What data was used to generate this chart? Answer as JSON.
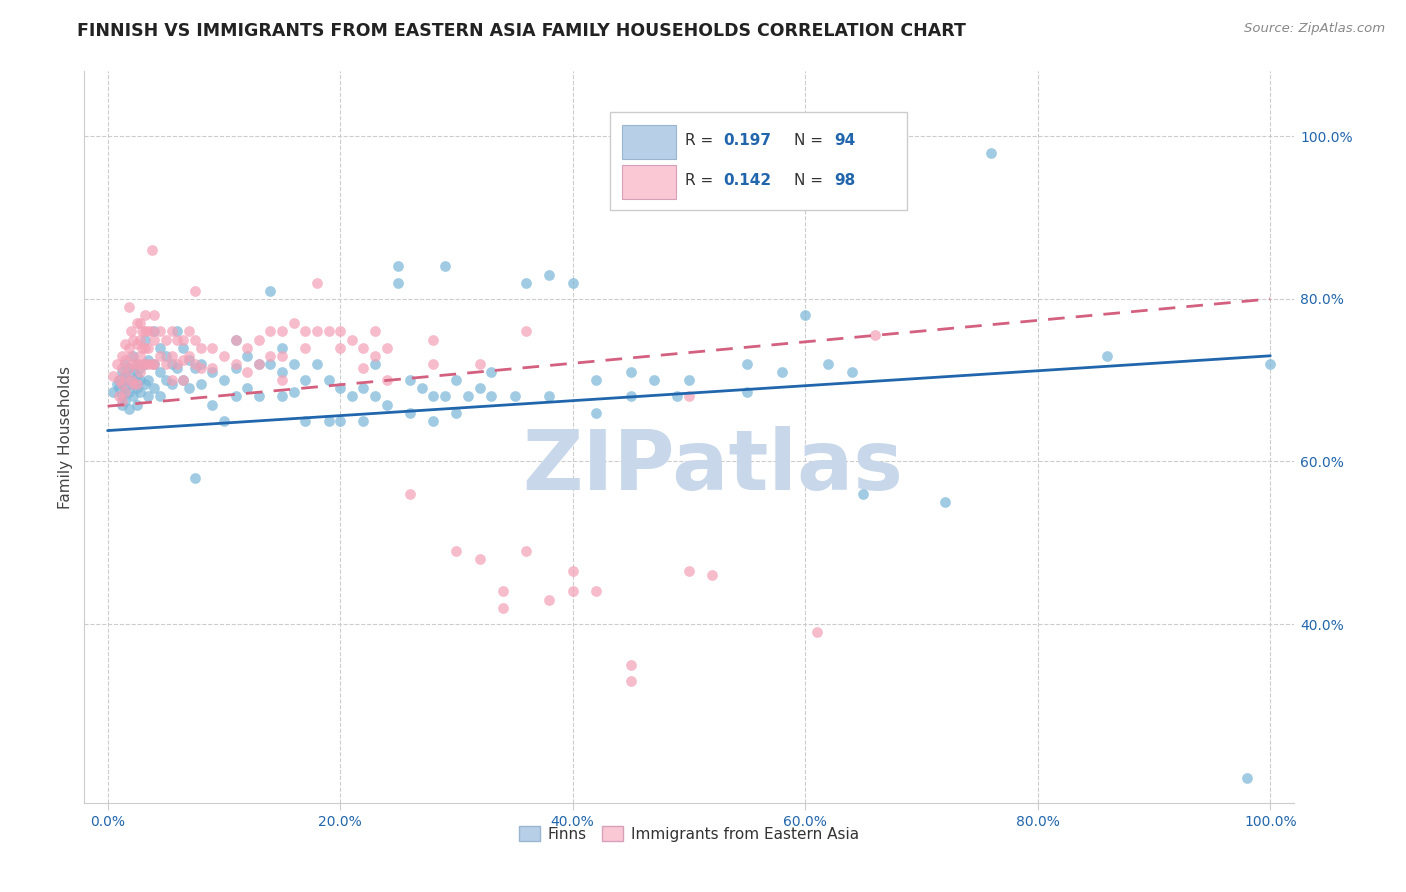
{
  "title": "FINNISH VS IMMIGRANTS FROM EASTERN ASIA FAMILY HOUSEHOLDS CORRELATION CHART",
  "source": "Source: ZipAtlas.com",
  "ylabel": "Family Households",
  "watermark": "ZIPatlas",
  "xticks": [
    0.0,
    0.2,
    0.4,
    0.6,
    0.8,
    1.0
  ],
  "xticklabels": [
    "0.0%",
    "20.0%",
    "40.0%",
    "60.0%",
    "80.0%",
    "100.0%"
  ],
  "yticks_right": [
    0.4,
    0.6,
    0.8,
    1.0
  ],
  "yticklabels_right": [
    "40.0%",
    "60.0%",
    "80.0%",
    "100.0%"
  ],
  "xlim": [
    -0.02,
    1.02
  ],
  "ylim": [
    0.18,
    1.08
  ],
  "blue_scatter": [
    [
      0.005,
      0.685
    ],
    [
      0.008,
      0.695
    ],
    [
      0.01,
      0.7
    ],
    [
      0.01,
      0.69
    ],
    [
      0.012,
      0.71
    ],
    [
      0.012,
      0.695
    ],
    [
      0.012,
      0.68
    ],
    [
      0.012,
      0.67
    ],
    [
      0.015,
      0.72
    ],
    [
      0.015,
      0.705
    ],
    [
      0.015,
      0.69
    ],
    [
      0.015,
      0.675
    ],
    [
      0.018,
      0.715
    ],
    [
      0.018,
      0.7
    ],
    [
      0.018,
      0.685
    ],
    [
      0.018,
      0.665
    ],
    [
      0.022,
      0.73
    ],
    [
      0.022,
      0.71
    ],
    [
      0.022,
      0.695
    ],
    [
      0.022,
      0.68
    ],
    [
      0.025,
      0.72
    ],
    [
      0.025,
      0.705
    ],
    [
      0.025,
      0.69
    ],
    [
      0.025,
      0.67
    ],
    [
      0.028,
      0.715
    ],
    [
      0.028,
      0.7
    ],
    [
      0.028,
      0.685
    ],
    [
      0.032,
      0.75
    ],
    [
      0.032,
      0.72
    ],
    [
      0.032,
      0.695
    ],
    [
      0.035,
      0.725
    ],
    [
      0.035,
      0.7
    ],
    [
      0.035,
      0.68
    ],
    [
      0.04,
      0.76
    ],
    [
      0.04,
      0.72
    ],
    [
      0.04,
      0.69
    ],
    [
      0.045,
      0.74
    ],
    [
      0.045,
      0.71
    ],
    [
      0.045,
      0.68
    ],
    [
      0.05,
      0.73
    ],
    [
      0.05,
      0.7
    ],
    [
      0.055,
      0.72
    ],
    [
      0.055,
      0.695
    ],
    [
      0.06,
      0.76
    ],
    [
      0.06,
      0.715
    ],
    [
      0.065,
      0.74
    ],
    [
      0.065,
      0.7
    ],
    [
      0.07,
      0.725
    ],
    [
      0.07,
      0.69
    ],
    [
      0.075,
      0.715
    ],
    [
      0.075,
      0.58
    ],
    [
      0.08,
      0.72
    ],
    [
      0.08,
      0.695
    ],
    [
      0.09,
      0.71
    ],
    [
      0.09,
      0.67
    ],
    [
      0.1,
      0.7
    ],
    [
      0.1,
      0.65
    ],
    [
      0.11,
      0.75
    ],
    [
      0.11,
      0.715
    ],
    [
      0.11,
      0.68
    ],
    [
      0.12,
      0.73
    ],
    [
      0.12,
      0.69
    ],
    [
      0.13,
      0.72
    ],
    [
      0.13,
      0.68
    ],
    [
      0.14,
      0.81
    ],
    [
      0.14,
      0.72
    ],
    [
      0.15,
      0.74
    ],
    [
      0.15,
      0.71
    ],
    [
      0.15,
      0.68
    ],
    [
      0.16,
      0.72
    ],
    [
      0.16,
      0.685
    ],
    [
      0.17,
      0.7
    ],
    [
      0.17,
      0.65
    ],
    [
      0.18,
      0.72
    ],
    [
      0.19,
      0.7
    ],
    [
      0.19,
      0.65
    ],
    [
      0.2,
      0.69
    ],
    [
      0.2,
      0.65
    ],
    [
      0.21,
      0.68
    ],
    [
      0.22,
      0.69
    ],
    [
      0.22,
      0.65
    ],
    [
      0.23,
      0.72
    ],
    [
      0.23,
      0.68
    ],
    [
      0.24,
      0.67
    ],
    [
      0.25,
      0.84
    ],
    [
      0.25,
      0.82
    ],
    [
      0.26,
      0.7
    ],
    [
      0.26,
      0.66
    ],
    [
      0.27,
      0.69
    ],
    [
      0.28,
      0.68
    ],
    [
      0.28,
      0.65
    ],
    [
      0.29,
      0.84
    ],
    [
      0.29,
      0.68
    ],
    [
      0.3,
      0.7
    ],
    [
      0.3,
      0.66
    ],
    [
      0.31,
      0.68
    ],
    [
      0.32,
      0.69
    ],
    [
      0.33,
      0.71
    ],
    [
      0.33,
      0.68
    ],
    [
      0.35,
      0.68
    ],
    [
      0.36,
      0.82
    ],
    [
      0.38,
      0.83
    ],
    [
      0.38,
      0.68
    ],
    [
      0.4,
      0.82
    ],
    [
      0.42,
      0.7
    ],
    [
      0.42,
      0.66
    ],
    [
      0.45,
      0.71
    ],
    [
      0.45,
      0.68
    ],
    [
      0.47,
      0.7
    ],
    [
      0.49,
      0.68
    ],
    [
      0.5,
      0.7
    ],
    [
      0.55,
      0.72
    ],
    [
      0.55,
      0.685
    ],
    [
      0.58,
      0.71
    ],
    [
      0.6,
      0.78
    ],
    [
      0.62,
      0.72
    ],
    [
      0.64,
      0.71
    ],
    [
      0.65,
      0.56
    ],
    [
      0.72,
      0.55
    ],
    [
      0.76,
      0.98
    ],
    [
      0.86,
      0.73
    ],
    [
      0.98,
      0.21
    ],
    [
      1.0,
      0.72
    ]
  ],
  "pink_scatter": [
    [
      0.005,
      0.705
    ],
    [
      0.008,
      0.72
    ],
    [
      0.01,
      0.7
    ],
    [
      0.01,
      0.68
    ],
    [
      0.012,
      0.73
    ],
    [
      0.012,
      0.715
    ],
    [
      0.012,
      0.695
    ],
    [
      0.012,
      0.675
    ],
    [
      0.015,
      0.745
    ],
    [
      0.015,
      0.725
    ],
    [
      0.015,
      0.705
    ],
    [
      0.015,
      0.685
    ],
    [
      0.018,
      0.79
    ],
    [
      0.018,
      0.74
    ],
    [
      0.018,
      0.715
    ],
    [
      0.02,
      0.76
    ],
    [
      0.02,
      0.73
    ],
    [
      0.02,
      0.7
    ],
    [
      0.022,
      0.75
    ],
    [
      0.022,
      0.72
    ],
    [
      0.022,
      0.695
    ],
    [
      0.025,
      0.77
    ],
    [
      0.025,
      0.745
    ],
    [
      0.025,
      0.72
    ],
    [
      0.025,
      0.695
    ],
    [
      0.028,
      0.77
    ],
    [
      0.028,
      0.75
    ],
    [
      0.028,
      0.73
    ],
    [
      0.028,
      0.71
    ],
    [
      0.03,
      0.76
    ],
    [
      0.03,
      0.74
    ],
    [
      0.03,
      0.72
    ],
    [
      0.032,
      0.78
    ],
    [
      0.032,
      0.76
    ],
    [
      0.032,
      0.74
    ],
    [
      0.032,
      0.72
    ],
    [
      0.035,
      0.76
    ],
    [
      0.035,
      0.74
    ],
    [
      0.035,
      0.72
    ],
    [
      0.038,
      0.86
    ],
    [
      0.038,
      0.76
    ],
    [
      0.038,
      0.72
    ],
    [
      0.04,
      0.78
    ],
    [
      0.04,
      0.75
    ],
    [
      0.04,
      0.72
    ],
    [
      0.045,
      0.76
    ],
    [
      0.045,
      0.73
    ],
    [
      0.05,
      0.75
    ],
    [
      0.05,
      0.72
    ],
    [
      0.055,
      0.76
    ],
    [
      0.055,
      0.73
    ],
    [
      0.055,
      0.7
    ],
    [
      0.06,
      0.75
    ],
    [
      0.06,
      0.72
    ],
    [
      0.065,
      0.75
    ],
    [
      0.065,
      0.725
    ],
    [
      0.065,
      0.7
    ],
    [
      0.07,
      0.76
    ],
    [
      0.07,
      0.73
    ],
    [
      0.075,
      0.81
    ],
    [
      0.075,
      0.75
    ],
    [
      0.075,
      0.72
    ],
    [
      0.08,
      0.74
    ],
    [
      0.08,
      0.715
    ],
    [
      0.09,
      0.74
    ],
    [
      0.09,
      0.715
    ],
    [
      0.1,
      0.73
    ],
    [
      0.11,
      0.75
    ],
    [
      0.11,
      0.72
    ],
    [
      0.12,
      0.74
    ],
    [
      0.12,
      0.71
    ],
    [
      0.13,
      0.75
    ],
    [
      0.13,
      0.72
    ],
    [
      0.14,
      0.76
    ],
    [
      0.14,
      0.73
    ],
    [
      0.15,
      0.76
    ],
    [
      0.15,
      0.73
    ],
    [
      0.15,
      0.7
    ],
    [
      0.16,
      0.77
    ],
    [
      0.17,
      0.76
    ],
    [
      0.17,
      0.74
    ],
    [
      0.18,
      0.82
    ],
    [
      0.18,
      0.76
    ],
    [
      0.19,
      0.76
    ],
    [
      0.2,
      0.76
    ],
    [
      0.2,
      0.74
    ],
    [
      0.21,
      0.75
    ],
    [
      0.22,
      0.74
    ],
    [
      0.22,
      0.715
    ],
    [
      0.23,
      0.76
    ],
    [
      0.23,
      0.73
    ],
    [
      0.24,
      0.74
    ],
    [
      0.24,
      0.7
    ],
    [
      0.26,
      0.56
    ],
    [
      0.28,
      0.75
    ],
    [
      0.28,
      0.72
    ],
    [
      0.3,
      0.49
    ],
    [
      0.32,
      0.72
    ],
    [
      0.32,
      0.48
    ],
    [
      0.34,
      0.44
    ],
    [
      0.34,
      0.42
    ],
    [
      0.36,
      0.76
    ],
    [
      0.36,
      0.49
    ],
    [
      0.38,
      0.43
    ],
    [
      0.4,
      0.465
    ],
    [
      0.4,
      0.44
    ],
    [
      0.42,
      0.44
    ],
    [
      0.45,
      0.35
    ],
    [
      0.45,
      0.33
    ],
    [
      0.5,
      0.68
    ],
    [
      0.5,
      0.465
    ],
    [
      0.52,
      0.46
    ],
    [
      0.61,
      0.39
    ],
    [
      0.66,
      0.755
    ]
  ],
  "blue_line": {
    "x0": 0.0,
    "x1": 1.0,
    "y0": 0.638,
    "y1": 0.73
  },
  "pink_line": {
    "x0": 0.0,
    "x1": 1.0,
    "y0": 0.668,
    "y1": 0.8
  },
  "scatter_size": 60,
  "scatter_alpha": 0.7,
  "background_color": "#ffffff",
  "grid_color": "#cccccc",
  "title_fontsize": 12.5,
  "axis_label_fontsize": 11,
  "tick_fontsize": 10,
  "source_fontsize": 9.5,
  "watermark_color": "#c8d8ea",
  "watermark_fontsize": 60,
  "blue_color": "#7ab5d8",
  "blue_line_color": "#2166ac",
  "pink_color": "#f4a0b5",
  "pink_line_color": "#d46080",
  "legend_box_blue": "#b8cfe8",
  "legend_box_pink": "#f9c8d4",
  "legend_R_color": "#2166ac",
  "legend_text_color": "#333333"
}
